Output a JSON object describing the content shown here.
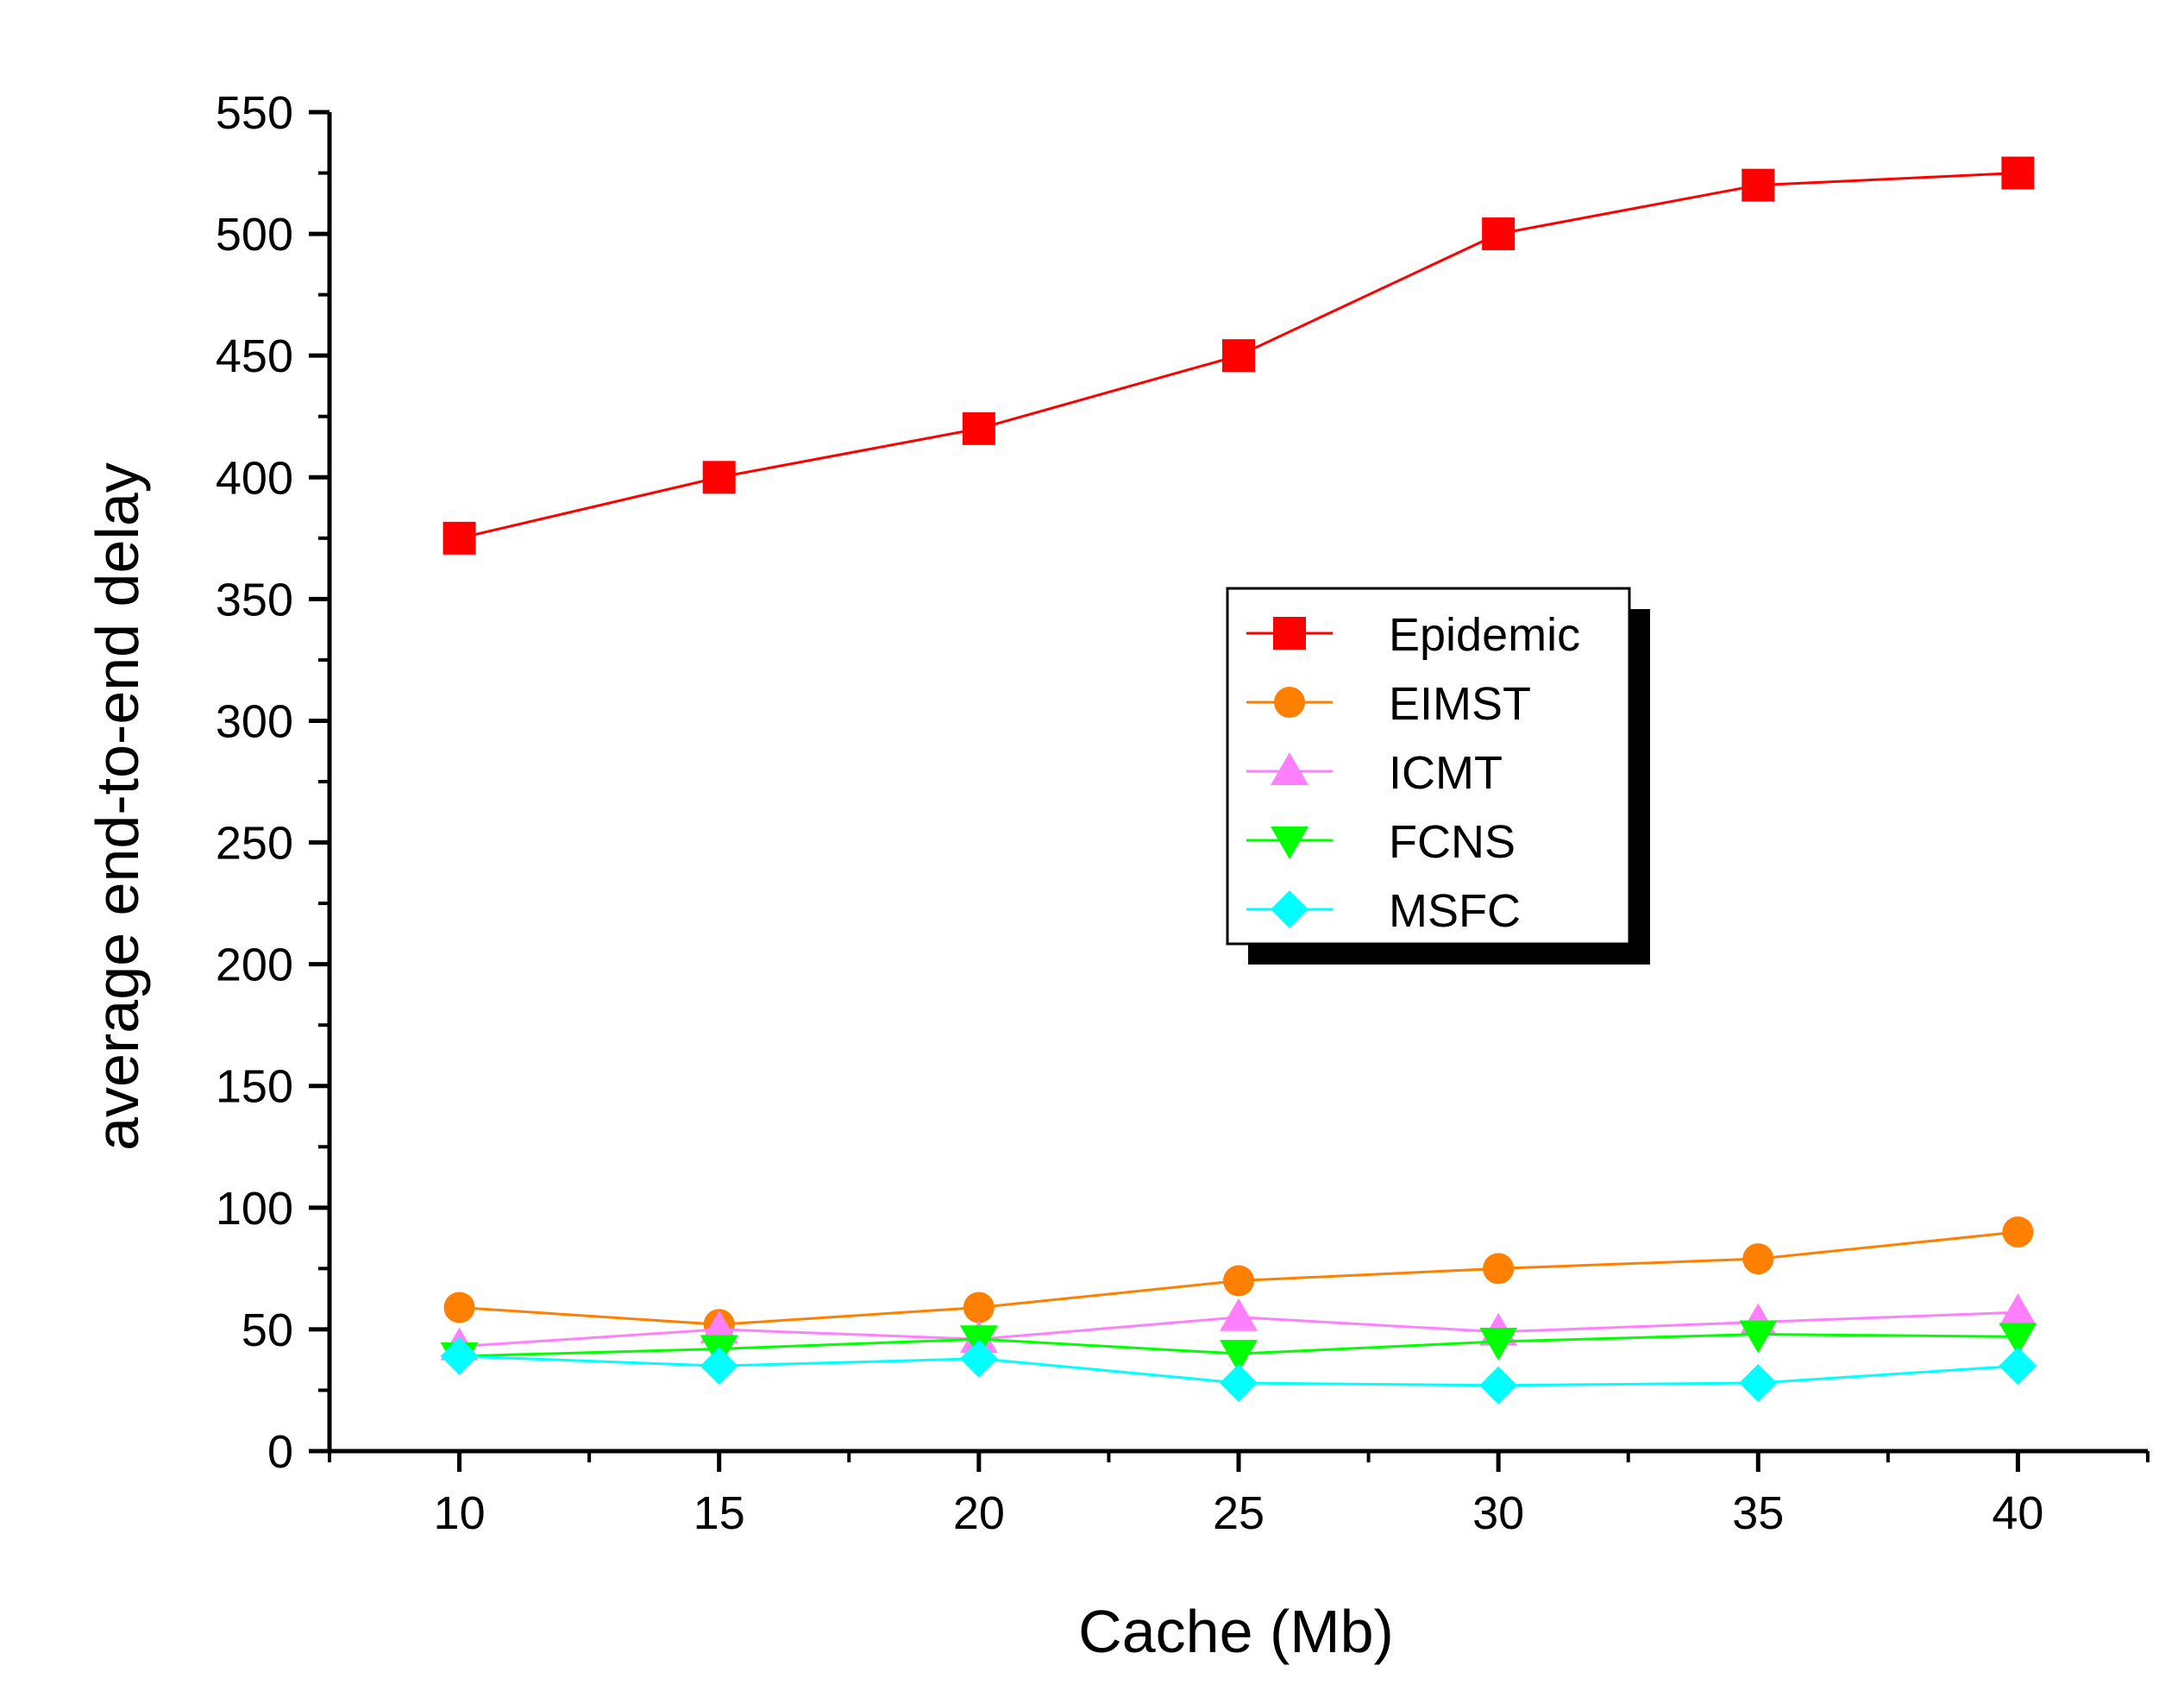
{
  "chart_data": {
    "type": "line",
    "title": "",
    "xlabel": "Cache (Mb)",
    "ylabel": "average end-to-end delay",
    "x": [
      10,
      15,
      20,
      25,
      30,
      35,
      40
    ],
    "xlim": [
      7.5,
      42.5
    ],
    "ylim": [
      0,
      550
    ],
    "xticks": [
      "10",
      "15",
      "20",
      "25",
      "30",
      "35",
      "40"
    ],
    "yticks": [
      "0",
      "50",
      "100",
      "150",
      "200",
      "250",
      "300",
      "350",
      "400",
      "450",
      "500",
      "550"
    ],
    "grid": false,
    "legend_position": "center-right",
    "series": [
      {
        "name": "Epidemic",
        "color": "#ff0000",
        "marker": "square",
        "values": [
          375,
          400,
          420,
          450,
          500,
          520,
          525
        ]
      },
      {
        "name": "EIMST",
        "color": "#ff7f00",
        "marker": "circle",
        "values": [
          59,
          52,
          59,
          70,
          75,
          79,
          90
        ]
      },
      {
        "name": "ICMT",
        "color": "#ff80ff",
        "marker": "triangle-up",
        "values": [
          43,
          50,
          46,
          55,
          49,
          53,
          57
        ]
      },
      {
        "name": "FCNS",
        "color": "#00ff00",
        "marker": "triangle-down",
        "values": [
          39,
          42,
          46,
          40,
          45,
          48,
          47
        ]
      },
      {
        "name": "MSFC",
        "color": "#00ffff",
        "marker": "diamond",
        "values": [
          39,
          35,
          38,
          28,
          27,
          28,
          35
        ]
      }
    ]
  }
}
